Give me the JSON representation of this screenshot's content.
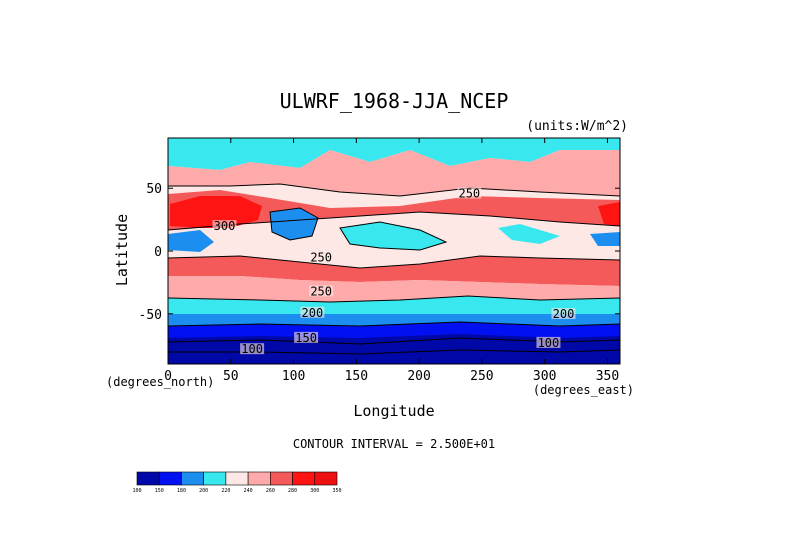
{
  "chart_data": {
    "type": "heatmap",
    "title": "ULWRF_1968-JJA_NCEP",
    "units": "(units:W/m^2)",
    "xlabel": "Longitude",
    "ylabel": "Latitude",
    "x_unit_label": "(degrees_east)",
    "y_unit_label": "(degrees_north)",
    "xlim": [
      0,
      360
    ],
    "ylim": [
      -90,
      90
    ],
    "x_ticks": [
      0,
      50,
      100,
      150,
      200,
      250,
      300,
      350
    ],
    "y_ticks": [
      -50,
      0,
      50
    ],
    "contour_interval_text": "CONTOUR INTERVAL = 2.500E+01",
    "contour_labels": [
      {
        "text": "250",
        "x": 240,
        "y": 45
      },
      {
        "text": "300",
        "x": 45,
        "y": 19
      },
      {
        "text": "250",
        "x": 122,
        "y": -6
      },
      {
        "text": "250",
        "x": 122,
        "y": -33
      },
      {
        "text": "200",
        "x": 115,
        "y": -50
      },
      {
        "text": "200",
        "x": 315,
        "y": -51
      },
      {
        "text": "150",
        "x": 110,
        "y": -70
      },
      {
        "text": "100",
        "x": 67,
        "y": -79
      },
      {
        "text": "100",
        "x": 303,
        "y": -74
      }
    ],
    "colorbar": {
      "levels": [
        100,
        150,
        180,
        200,
        220,
        240,
        260,
        280,
        300,
        350
      ],
      "colors": [
        "#0008a8",
        "#0010f0",
        "#1c8ef0",
        "#38e8ee",
        "#fde8e6",
        "#ffaaaa",
        "#f55a5a",
        "#ff1414",
        "#ee1111"
      ]
    }
  }
}
